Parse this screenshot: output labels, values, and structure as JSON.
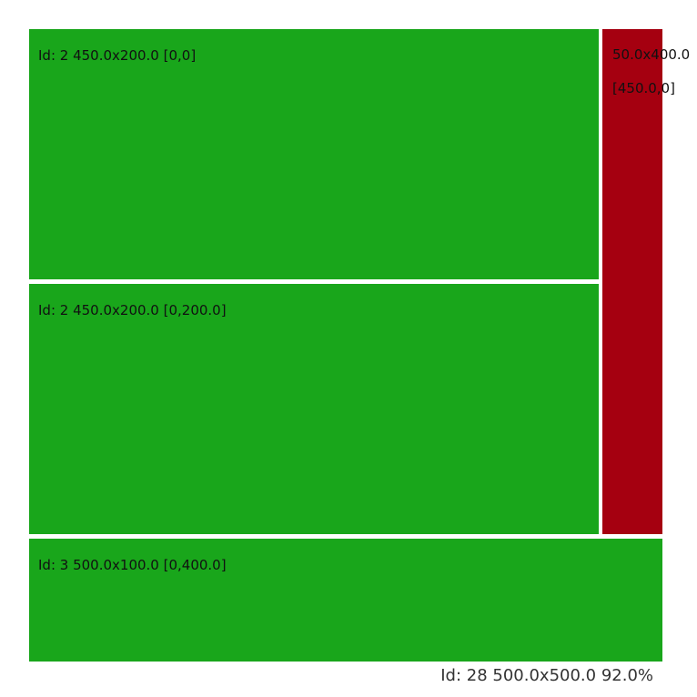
{
  "colors": {
    "green": "#19a61b",
    "red": "#a50010",
    "background": "#ffffff"
  },
  "tiles": [
    {
      "label": "Id: 2 450.0x200.0 [0,0]",
      "color": "green"
    },
    {
      "label": "Id: 2 450.0x200.0 [0,200.0]",
      "color": "green"
    },
    {
      "label": "Id: 3 500.0x100.0 [0,400.0]",
      "color": "green"
    },
    {
      "size_label": "50.0x400.0",
      "pos_label": "[450.0,0]",
      "color": "red"
    }
  ],
  "footer": {
    "label": "Id: 28 500.0x500.0 92.0%"
  }
}
